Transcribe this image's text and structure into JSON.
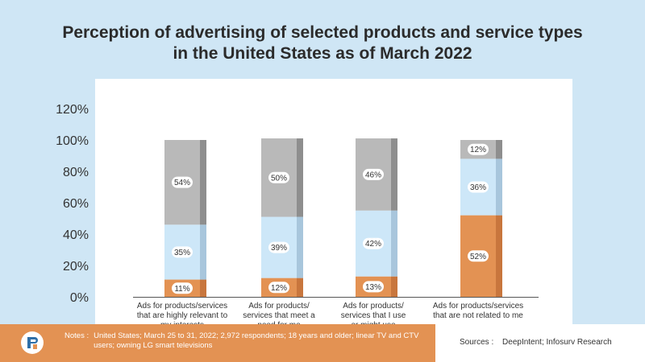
{
  "chart_data": {
    "type": "bar",
    "stacked": true,
    "title_lines": [
      "Perception of advertising of selected products and service types",
      "in the United States as of March 2022"
    ],
    "categories": [
      [
        "Ads for products/services",
        "that are highly relevant to",
        "my interests"
      ],
      [
        "Ads for products/",
        "services that meet a",
        "need for me"
      ],
      [
        "Ads for products/",
        "services that I use",
        "or might use"
      ],
      [
        "Ads for products/services",
        "that are not related to me"
      ]
    ],
    "series": [
      {
        "name": "bottom",
        "values": [
          11,
          12,
          13,
          52
        ],
        "labels": [
          "11%",
          "12%",
          "13%",
          "52%"
        ],
        "color": "#e39253",
        "edge": "#c8763d"
      },
      {
        "name": "middle",
        "values": [
          35,
          39,
          42,
          36
        ],
        "labels": [
          "35%",
          "39%",
          "42%",
          "36%"
        ],
        "color": "#cde7f8",
        "edge": "#a8c6dc"
      },
      {
        "name": "top",
        "values": [
          54,
          50,
          46,
          12
        ],
        "labels": [
          "54%",
          "50%",
          "46%",
          "12%"
        ],
        "color": "#b9b9b9",
        "edge": "#8e8e8e"
      }
    ],
    "yticks": [
      "0%",
      "20%",
      "40%",
      "60%",
      "80%",
      "100%",
      "120%"
    ],
    "ylim": [
      0,
      120
    ],
    "grid": false
  },
  "footer": {
    "notes_label": "Notes :",
    "notes_text": "United States; March 25 to 31, 2022; 2,972 respondents; 18 years and older; linear TV and CTV users; owning LG smart televisions",
    "sources_label": "Sources :",
    "sources_text": "DeepIntent; Infosurv Research"
  },
  "colors": {
    "background": "#cfe6f5",
    "accent": "#e39253"
  }
}
